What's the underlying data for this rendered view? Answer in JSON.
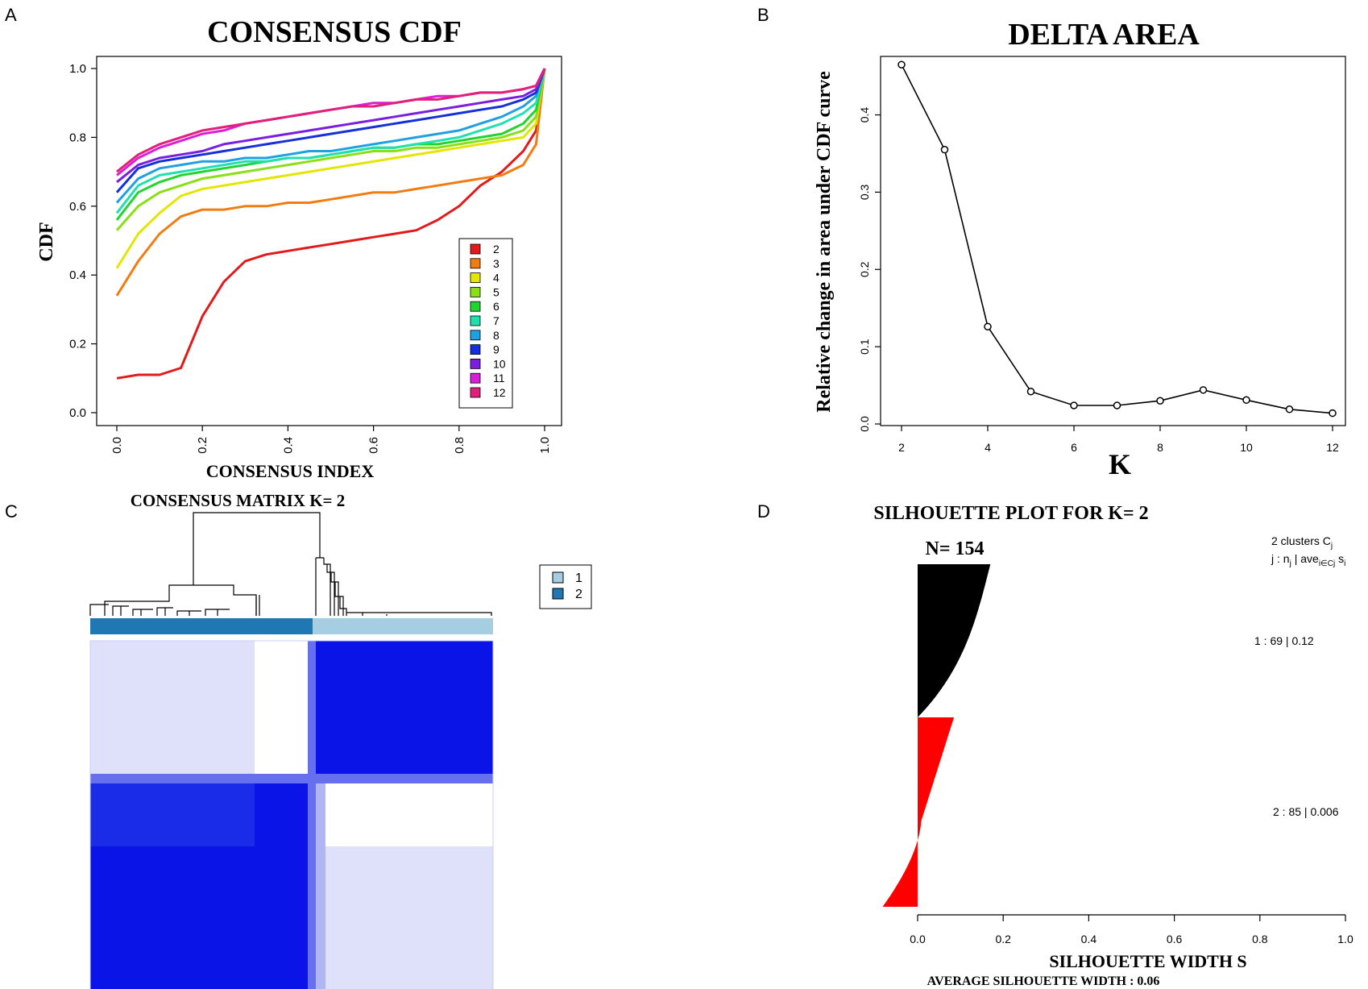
{
  "panels": {
    "A": "A",
    "B": "B",
    "C": "C",
    "D": "D"
  },
  "chart_data": [
    {
      "type": "line",
      "title": "CONSENSUS CDF",
      "xlabel": "CONSENSUS INDEX",
      "ylabel": "CDF",
      "xlim": [
        0,
        1
      ],
      "ylim": [
        0,
        1
      ],
      "xticks": [
        "0.0",
        "0.2",
        "0.4",
        "0.6",
        "0.8",
        "1.0"
      ],
      "yticks": [
        "0.0",
        "0.2",
        "0.4",
        "0.6",
        "0.8",
        "1.0"
      ],
      "legend": {
        "position": "bottom-right",
        "entries": [
          "2",
          "3",
          "4",
          "5",
          "6",
          "7",
          "8",
          "9",
          "10",
          "11",
          "12"
        ]
      },
      "x": [
        0.0,
        0.05,
        0.1,
        0.15,
        0.2,
        0.25,
        0.3,
        0.35,
        0.4,
        0.45,
        0.5,
        0.55,
        0.6,
        0.65,
        0.7,
        0.75,
        0.8,
        0.85,
        0.9,
        0.95,
        0.98,
        1.0
      ],
      "series": [
        {
          "name": "2",
          "color": "#e31a1c",
          "values": [
            0.1,
            0.11,
            0.11,
            0.13,
            0.28,
            0.38,
            0.44,
            0.46,
            0.47,
            0.48,
            0.49,
            0.5,
            0.51,
            0.52,
            0.53,
            0.56,
            0.6,
            0.66,
            0.7,
            0.76,
            0.82,
            1.0
          ]
        },
        {
          "name": "3",
          "color": "#f07c12",
          "values": [
            0.34,
            0.44,
            0.52,
            0.57,
            0.59,
            0.59,
            0.6,
            0.6,
            0.61,
            0.61,
            0.62,
            0.63,
            0.64,
            0.64,
            0.65,
            0.66,
            0.67,
            0.68,
            0.69,
            0.72,
            0.78,
            1.0
          ]
        },
        {
          "name": "4",
          "color": "#e3e600",
          "values": [
            0.42,
            0.52,
            0.58,
            0.63,
            0.65,
            0.66,
            0.67,
            0.68,
            0.69,
            0.7,
            0.71,
            0.72,
            0.73,
            0.74,
            0.75,
            0.76,
            0.77,
            0.78,
            0.79,
            0.8,
            0.84,
            1.0
          ]
        },
        {
          "name": "5",
          "color": "#8adf16",
          "values": [
            0.53,
            0.6,
            0.64,
            0.66,
            0.68,
            0.69,
            0.7,
            0.71,
            0.72,
            0.73,
            0.74,
            0.75,
            0.76,
            0.76,
            0.77,
            0.77,
            0.78,
            0.79,
            0.8,
            0.82,
            0.86,
            1.0
          ]
        },
        {
          "name": "6",
          "color": "#22d42e",
          "values": [
            0.56,
            0.64,
            0.67,
            0.69,
            0.7,
            0.71,
            0.72,
            0.73,
            0.74,
            0.74,
            0.75,
            0.76,
            0.77,
            0.77,
            0.78,
            0.78,
            0.79,
            0.8,
            0.81,
            0.84,
            0.88,
            1.0
          ]
        },
        {
          "name": "7",
          "color": "#20e0b0",
          "values": [
            0.58,
            0.66,
            0.69,
            0.7,
            0.71,
            0.72,
            0.73,
            0.73,
            0.74,
            0.74,
            0.75,
            0.76,
            0.77,
            0.77,
            0.78,
            0.79,
            0.8,
            0.82,
            0.84,
            0.87,
            0.9,
            1.0
          ]
        },
        {
          "name": "8",
          "color": "#1fa0e0",
          "values": [
            0.61,
            0.68,
            0.71,
            0.72,
            0.73,
            0.73,
            0.74,
            0.74,
            0.75,
            0.76,
            0.76,
            0.77,
            0.78,
            0.79,
            0.8,
            0.81,
            0.82,
            0.84,
            0.86,
            0.89,
            0.92,
            1.0
          ]
        },
        {
          "name": "9",
          "color": "#1530d8",
          "values": [
            0.64,
            0.71,
            0.73,
            0.74,
            0.75,
            0.76,
            0.77,
            0.78,
            0.79,
            0.8,
            0.81,
            0.82,
            0.83,
            0.84,
            0.85,
            0.86,
            0.87,
            0.88,
            0.89,
            0.91,
            0.93,
            1.0
          ]
        },
        {
          "name": "10",
          "color": "#7a1fe0",
          "values": [
            0.67,
            0.72,
            0.74,
            0.75,
            0.76,
            0.78,
            0.79,
            0.8,
            0.81,
            0.82,
            0.83,
            0.84,
            0.85,
            0.86,
            0.87,
            0.88,
            0.89,
            0.9,
            0.91,
            0.92,
            0.94,
            1.0
          ]
        },
        {
          "name": "11",
          "color": "#d91fd8",
          "values": [
            0.69,
            0.74,
            0.77,
            0.79,
            0.81,
            0.82,
            0.84,
            0.85,
            0.86,
            0.87,
            0.88,
            0.89,
            0.9,
            0.9,
            0.91,
            0.92,
            0.92,
            0.93,
            0.93,
            0.94,
            0.95,
            1.0
          ]
        },
        {
          "name": "12",
          "color": "#e0207a",
          "values": [
            0.7,
            0.75,
            0.78,
            0.8,
            0.82,
            0.83,
            0.84,
            0.85,
            0.86,
            0.87,
            0.88,
            0.89,
            0.89,
            0.9,
            0.91,
            0.91,
            0.92,
            0.93,
            0.93,
            0.94,
            0.95,
            1.0
          ]
        }
      ]
    },
    {
      "type": "line",
      "title": "DELTA AREA",
      "xlabel": "K",
      "ylabel": "Relative change in area under CDF curve",
      "xlim": [
        2,
        12
      ],
      "ylim": [
        0,
        0.46
      ],
      "xticks": [
        "2",
        "4",
        "6",
        "8",
        "10",
        "12"
      ],
      "yticks": [
        "0.0",
        "0.1",
        "0.2",
        "0.3",
        "0.4"
      ],
      "x": [
        2,
        3,
        4,
        5,
        6,
        7,
        8,
        9,
        10,
        11,
        12
      ],
      "values": [
        0.465,
        0.355,
        0.126,
        0.042,
        0.024,
        0.024,
        0.03,
        0.044,
        0.031,
        0.019,
        0.014
      ]
    },
    {
      "type": "heatmap",
      "title": "CONSENSUS MATRIX K= 2",
      "legend": {
        "position": "top-right",
        "entries": [
          "1",
          "2"
        ],
        "colors": [
          "#a6cee3",
          "#1f78b4"
        ]
      },
      "cluster_sizes": {
        "2": 85,
        "1": 69
      },
      "colors": {
        "high": "#0a14e6",
        "mid": "#c8cbf7",
        "low": "#ffffff"
      }
    },
    {
      "type": "bar",
      "title": "SILHOUETTE PLOT FOR K= 2",
      "n_label": "N= 154",
      "xlabel": "SILHOUETTE WIDTH S",
      "xlim": [
        0,
        1
      ],
      "xticks": [
        "0.0",
        "0.2",
        "0.4",
        "0.6",
        "0.8",
        "1.0"
      ],
      "footer": "AVERAGE SILHOUETTE WIDTH : 0.06",
      "header_line1": "2  clusters  C",
      "header_sub1": "j",
      "header_line2a": "j :  n",
      "header_sub2a": "j",
      "header_line2b": " | ave",
      "header_sub2b": "i∈Cj",
      "header_line2c": "  s",
      "header_sub2c": "i",
      "clusters": [
        {
          "label": "1 :   69  |  0.12",
          "n": 69,
          "avg": 0.12,
          "color": "#000000"
        },
        {
          "label": "2 :   85  |  0.006",
          "n": 85,
          "avg": 0.006,
          "color": "#ff0000"
        }
      ]
    }
  ]
}
